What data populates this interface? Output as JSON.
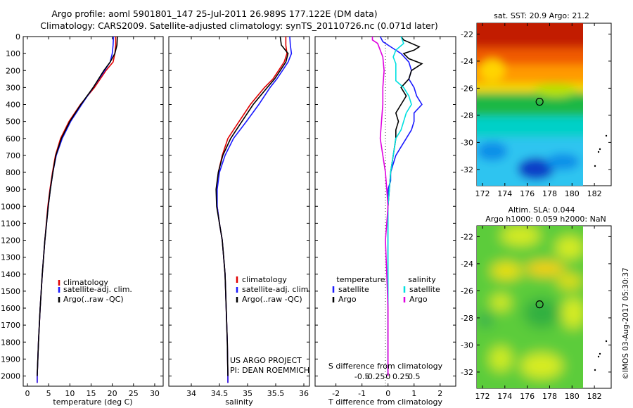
{
  "header": {
    "line1": "Argo profile: aoml 5901801_147 25-Jul-2011 26.989S 177.122E (DM data)",
    "line2": "Climatology: CARS2009. Satellite-adjusted climatology: synTS_20110726.nc (0.071d later)"
  },
  "colors": {
    "climatology": "#e00000",
    "satellite": "#1a1aff",
    "argo": "#000000",
    "sat_salinity": "#00e0e0",
    "argo_salinity": "#e000e0"
  },
  "depth_ticks": [
    0,
    100,
    200,
    300,
    400,
    500,
    600,
    700,
    800,
    900,
    1000,
    1100,
    1200,
    1300,
    1400,
    1500,
    1600,
    1700,
    1800,
    1900,
    2000
  ],
  "legend_labels": [
    "climatology",
    "satellite-adj. clim.",
    "Argo(..raw -QC)"
  ],
  "chart_data": [
    {
      "type": "line",
      "xlabel": "temperature (deg C)",
      "xlim": [
        -1,
        32
      ],
      "ylim": [
        2060,
        0
      ],
      "xticks": [
        0,
        5,
        10,
        15,
        20,
        25,
        30
      ],
      "series": [
        {
          "name": "climatology",
          "depth": [
            0,
            50,
            100,
            150,
            200,
            300,
            400,
            500,
            600,
            700,
            800,
            900,
            1000,
            1200,
            1400,
            1600,
            1800,
            2000,
            2040
          ],
          "values": [
            20.8,
            20.8,
            20.6,
            20.2,
            18.5,
            15.8,
            12.5,
            9.8,
            7.8,
            6.6,
            5.9,
            5.3,
            4.8,
            4.1,
            3.5,
            3.0,
            2.6,
            2.3,
            2.3
          ]
        },
        {
          "name": "satellite-adj. clim.",
          "depth": [
            0,
            50,
            100,
            150,
            200,
            300,
            400,
            500,
            600,
            700,
            800,
            900,
            1000,
            1200,
            1400,
            1600,
            1800,
            2000,
            2040
          ],
          "values": [
            20.3,
            20.2,
            20.0,
            19.5,
            18.2,
            15.5,
            12.8,
            10.2,
            8.2,
            6.8,
            6.0,
            5.4,
            4.9,
            4.1,
            3.5,
            3.0,
            2.6,
            2.3,
            2.3
          ]
        },
        {
          "name": "Argo(..raw -QC)",
          "depth": [
            0,
            50,
            100,
            150,
            200,
            300,
            400,
            500,
            600,
            700,
            800,
            900,
            1000,
            1200,
            1400,
            1600,
            1800,
            2000
          ],
          "values": [
            21.2,
            21.1,
            20.6,
            19.5,
            18.0,
            15.5,
            12.6,
            10.0,
            8.0,
            6.7,
            6.0,
            5.4,
            4.9,
            4.1,
            3.5,
            3.0,
            2.6,
            2.3
          ]
        }
      ],
      "legend_labels": [
        "climatology",
        "satellite-adj. clim.",
        "Argo(..raw -QC)"
      ]
    },
    {
      "type": "line",
      "xlabel": "salinity",
      "xlim": [
        33.6,
        36.1
      ],
      "ylim": [
        2060,
        0
      ],
      "xticks": [
        34,
        34.5,
        35,
        35.5,
        36
      ],
      "series": [
        {
          "name": "climatology",
          "depth": [
            0,
            50,
            100,
            150,
            200,
            250,
            300,
            400,
            500,
            600,
            700,
            800,
            900,
            1000,
            1100,
            1200,
            1400,
            1600,
            1800,
            2000,
            2040
          ],
          "values": [
            35.68,
            35.68,
            35.7,
            35.65,
            35.55,
            35.45,
            35.3,
            35.05,
            34.85,
            34.65,
            34.55,
            34.48,
            34.45,
            34.46,
            34.5,
            34.55,
            34.6,
            34.62,
            34.64,
            34.65,
            34.65
          ]
        },
        {
          "name": "satellite-adj. clim.",
          "depth": [
            0,
            50,
            100,
            150,
            200,
            250,
            300,
            400,
            500,
            600,
            700,
            800,
            900,
            1000,
            1100,
            1200,
            1400,
            1600,
            1800,
            2000,
            2040
          ],
          "values": [
            35.75,
            35.76,
            35.78,
            35.72,
            35.62,
            35.52,
            35.4,
            35.2,
            34.98,
            34.75,
            34.6,
            34.5,
            34.46,
            34.46,
            34.5,
            34.55,
            34.6,
            34.62,
            34.64,
            34.65,
            34.65
          ]
        },
        {
          "name": "Argo(..raw -QC)",
          "depth": [
            0,
            50,
            100,
            150,
            200,
            250,
            300,
            400,
            500,
            600,
            700,
            800,
            900,
            1000,
            1100,
            1200,
            1400,
            1600,
            1800,
            2000
          ],
          "values": [
            35.58,
            35.6,
            35.72,
            35.68,
            35.58,
            35.48,
            35.35,
            35.1,
            34.9,
            34.7,
            34.56,
            34.48,
            34.44,
            34.45,
            34.5,
            34.55,
            34.6,
            34.62,
            34.64,
            34.65
          ]
        }
      ],
      "legend_labels": [
        "climatology",
        "satellite-adj. clim.",
        "Argo(..raw -QC)"
      ],
      "annotation_line1": "US ARGO PROJECT",
      "annotation_line2": "PI: DEAN ROEMMICH"
    },
    {
      "type": "line",
      "xlabel": "T difference from climatology",
      "top_xlabel": "S difference from climatology",
      "xlim": [
        -2.8,
        2.6
      ],
      "ylim": [
        2060,
        0
      ],
      "xticks": [
        -2,
        -1,
        0,
        1,
        2
      ],
      "xtick_labels": [
        "-2",
        "-1",
        "0",
        "1",
        "2"
      ],
      "top_xticks": [
        -1,
        -0.5,
        0,
        0.5,
        1
      ],
      "top_xtick_labels": [
        "-0.5",
        "-0.25",
        "0",
        "0.25",
        "0.5"
      ],
      "series": [
        {
          "name": "temperature satellite",
          "depth": [
            0,
            30,
            60,
            100,
            150,
            200,
            250,
            300,
            350,
            400,
            450,
            500,
            550,
            600,
            650,
            700,
            750,
            800,
            850,
            900,
            1000,
            1100,
            1200,
            1400,
            1600,
            1800,
            2000
          ],
          "values": [
            -0.3,
            -0.2,
            0.1,
            0.5,
            0.8,
            0.9,
            0.8,
            1.0,
            1.1,
            1.3,
            1.0,
            1.0,
            0.9,
            0.7,
            0.5,
            0.3,
            0.2,
            0.1,
            0.1,
            0.0,
            0.0,
            0.0,
            0.0,
            0.0,
            0.0,
            0.0,
            0.0
          ]
        },
        {
          "name": "temperature Argo",
          "depth": [
            0,
            20,
            40,
            60,
            80,
            100,
            130,
            160,
            200,
            250,
            300,
            350,
            400,
            450,
            500,
            550,
            600,
            700,
            800,
            900,
            1000,
            1200,
            1400,
            1600,
            1800,
            2000
          ],
          "values": [
            0.5,
            0.6,
            0.9,
            1.2,
            1.0,
            0.6,
            0.8,
            1.3,
            0.9,
            0.8,
            0.5,
            0.7,
            0.5,
            0.3,
            0.4,
            0.3,
            0.3,
            0.2,
            0.1,
            0.05,
            0.0,
            0.0,
            0.0,
            0.0,
            0.0,
            0.0
          ]
        },
        {
          "name": "salinity satellite",
          "depth": [
            0,
            40,
            80,
            120,
            160,
            200,
            260,
            300,
            350,
            400,
            450,
            500,
            550,
            600,
            700,
            800,
            900,
            1000,
            1200,
            1400,
            1600,
            1800,
            2000
          ],
          "values": [
            0.5,
            0.6,
            0.3,
            0.2,
            0.3,
            0.3,
            0.3,
            0.6,
            0.8,
            0.9,
            0.7,
            0.6,
            0.5,
            0.3,
            0.2,
            0.1,
            0.05,
            0.0,
            0.0,
            0.0,
            0.0,
            0.0,
            0.0
          ]
        },
        {
          "name": "salinity Argo",
          "depth": [
            0,
            20,
            40,
            80,
            120,
            200,
            300,
            400,
            500,
            600,
            700,
            800,
            900,
            1000,
            1100,
            1200,
            1400,
            1600,
            1800,
            2000
          ],
          "values": [
            -0.6,
            -0.6,
            -0.4,
            -0.3,
            -0.2,
            -0.15,
            -0.2,
            -0.2,
            -0.25,
            -0.3,
            -0.2,
            -0.1,
            -0.05,
            0.0,
            -0.05,
            -0.1,
            -0.05,
            0.0,
            0.0,
            0.0
          ]
        }
      ],
      "legend_title_temperature": "temperature",
      "legend_title_salinity": "salinity",
      "legend_labels": [
        "satellite",
        "Argo",
        "satellite",
        "Argo"
      ]
    },
    {
      "type": "heatmap",
      "title": "sat. SST: 20.9 Argo: 21.2",
      "xlim": [
        171.5,
        183.5
      ],
      "ylim": [
        -33.2,
        -21.2
      ],
      "xticks": [
        172,
        174,
        176,
        178,
        180,
        182
      ],
      "yticks": [
        -22,
        -24,
        -26,
        -28,
        -30,
        -32
      ],
      "marker": [
        177.1,
        -27.0
      ]
    },
    {
      "type": "heatmap",
      "title_line1": "Altim. SLA: 0.044",
      "title_line2": "Argo h1000: 0.059 h2000: NaN",
      "xlim": [
        171.5,
        183.5
      ],
      "ylim": [
        -33.2,
        -21.2
      ],
      "xticks": [
        172,
        174,
        176,
        178,
        180,
        182
      ],
      "yticks": [
        -22,
        -24,
        -26,
        -28,
        -30,
        -32
      ],
      "marker": [
        177.1,
        -27.0
      ]
    }
  ],
  "credit": "©IMOS 03-Aug-2017 05:30:37"
}
